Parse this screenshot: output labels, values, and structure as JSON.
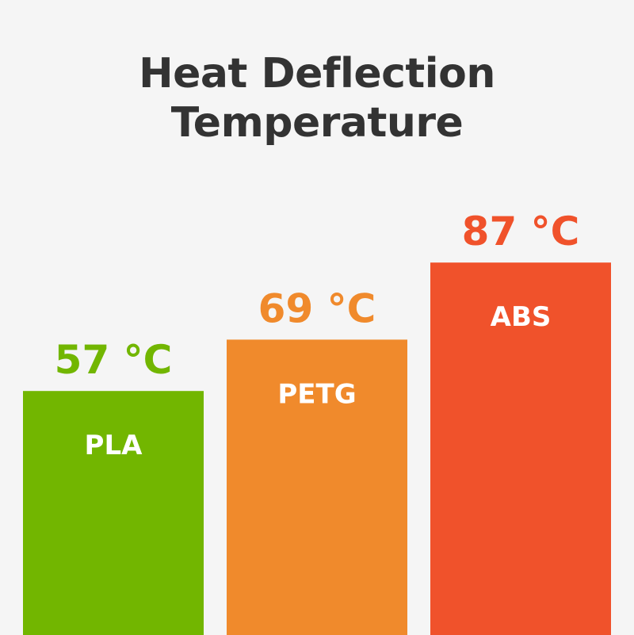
{
  "chart_data": {
    "type": "bar",
    "title_lines": [
      "Heat Deflection",
      "Temperature"
    ],
    "categories": [
      "PLA",
      "PETG",
      "ABS"
    ],
    "values": [
      57,
      69,
      87
    ],
    "value_labels": [
      "57 °C",
      "69 °C",
      "87 °C"
    ],
    "unit": "°C",
    "colors": [
      "#72b600",
      "#f08a2c",
      "#f0522b"
    ],
    "xlabel": "",
    "ylabel": "",
    "grid": false,
    "legend": "none"
  }
}
